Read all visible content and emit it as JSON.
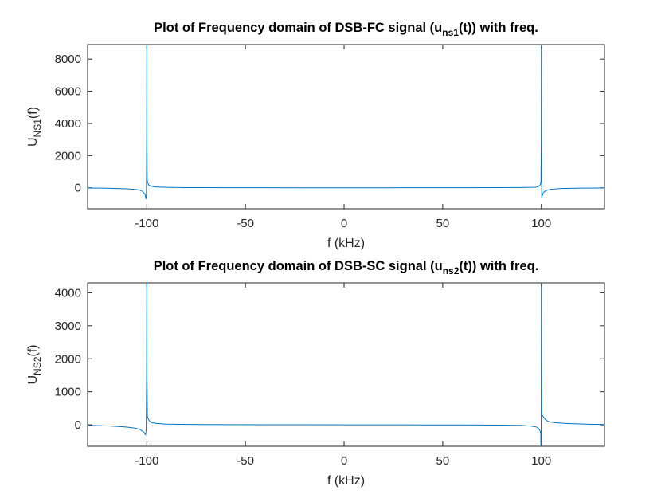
{
  "chart_data": [
    {
      "type": "line",
      "title": {
        "pre": "Plot of Frequency domain of DSB-FC signal (u",
        "sub": "ns1",
        "post": "(t)) with freq."
      },
      "xlabel": "f (kHz)",
      "ylabel": {
        "main": "U",
        "sub": "NS1",
        "post": "(f)"
      },
      "xlim": [
        -130,
        132
      ],
      "ylim": [
        -1300,
        8900
      ],
      "xticks": [
        -100,
        -50,
        0,
        50,
        100
      ],
      "yticks": [
        0,
        2000,
        4000,
        6000,
        8000
      ],
      "grid": false,
      "series": [
        {
          "color": "#0072bd",
          "x": [
            -130,
            -120,
            -110,
            -105,
            -103,
            -102,
            -101,
            -100.7,
            -100.4,
            -100.2,
            -100.05,
            -100,
            -99.95,
            -99.8,
            -99.6,
            -99.3,
            -99,
            -98,
            -97,
            -95,
            -90,
            -80,
            -60,
            -40,
            -20,
            0,
            20,
            40,
            60,
            80,
            90,
            95,
            97,
            98,
            99,
            99.3,
            99.6,
            99.8,
            99.95,
            100,
            100.05,
            100.2,
            100.4,
            100.7,
            101,
            102,
            103,
            105,
            110,
            120,
            132
          ],
          "y": [
            -10,
            -25,
            -60,
            -110,
            -170,
            -240,
            -380,
            -520,
            -700,
            -450,
            3500,
            9500,
            3500,
            520,
            340,
            250,
            180,
            110,
            80,
            50,
            30,
            15,
            8,
            4,
            2,
            0,
            2,
            4,
            8,
            15,
            20,
            30,
            40,
            60,
            120,
            170,
            240,
            360,
            3000,
            9500,
            3200,
            -600,
            -520,
            -420,
            -300,
            -200,
            -150,
            -90,
            -45,
            -20,
            -10
          ]
        }
      ]
    },
    {
      "type": "line",
      "title": {
        "pre": "Plot of Frequency domain of DSB-SC signal (u",
        "sub": "ns2",
        "post": "(t)) with freq."
      },
      "xlabel": "f (kHz)",
      "ylabel": {
        "main": "U",
        "sub": "NS2",
        "post": "(f)"
      },
      "xlim": [
        -130,
        132
      ],
      "ylim": [
        -650,
        4300
      ],
      "xticks": [
        -100,
        -50,
        0,
        50,
        100
      ],
      "yticks": [
        0,
        1000,
        2000,
        3000,
        4000
      ],
      "grid": false,
      "series": [
        {
          "color": "#0072bd",
          "x": [
            -130,
            -125,
            -120,
            -115,
            -110,
            -106,
            -104,
            -103,
            -102,
            -101.5,
            -101,
            -100.6,
            -100.3,
            -100.1,
            -100,
            -99.9,
            -99.7,
            -99.4,
            -99,
            -98.5,
            -98,
            -97,
            -95,
            -90,
            -80,
            -60,
            -40,
            -20,
            0,
            20,
            40,
            60,
            80,
            90,
            95,
            97,
            98,
            98.5,
            99,
            99.4,
            99.7,
            99.9,
            100,
            100.1,
            100.3,
            100.6,
            101,
            101.5,
            102,
            103,
            104,
            106,
            110,
            115,
            120,
            125,
            132
          ],
          "y": [
            -15,
            -25,
            -35,
            -50,
            -70,
            -100,
            -130,
            -160,
            -200,
            -230,
            -270,
            -300,
            -150,
            1500,
            4500,
            1500,
            260,
            200,
            150,
            110,
            80,
            60,
            40,
            20,
            10,
            5,
            3,
            1,
            0,
            -1,
            -3,
            -5,
            -10,
            -20,
            -40,
            -60,
            -80,
            -110,
            -150,
            -200,
            -260,
            -1500,
            4500,
            1500,
            300,
            280,
            240,
            200,
            160,
            120,
            90,
            70,
            50,
            35,
            25,
            15,
            10
          ]
        }
      ]
    }
  ]
}
